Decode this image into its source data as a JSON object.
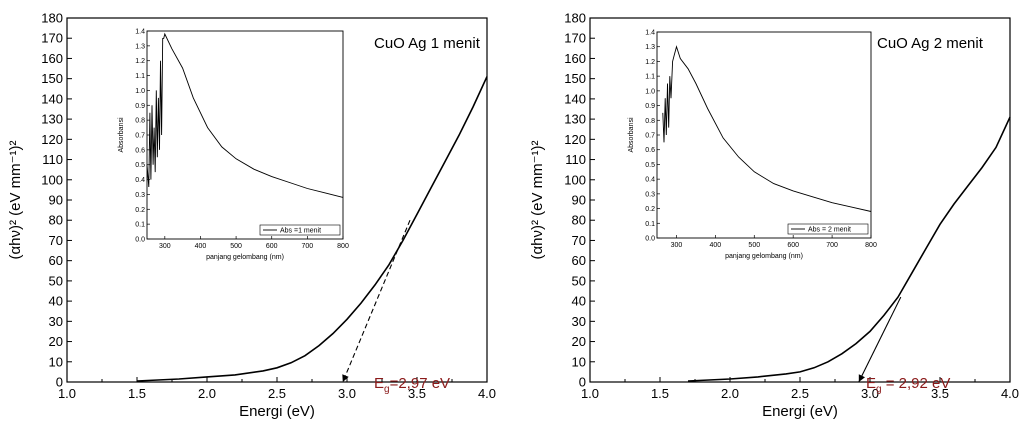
{
  "chart_data": [
    {
      "type": "line",
      "xlabel": "Energi (eV)",
      "ylabel": "(αhν)² (eV mm⁻¹)²",
      "xlim": [
        1.0,
        4.0
      ],
      "ylim": [
        0,
        180
      ],
      "xticks": [
        "1.0",
        "1.5",
        "2.0",
        "2.5",
        "3.0",
        "3.5",
        "4.0"
      ],
      "yticks": [
        "0",
        "10",
        "20",
        "30",
        "40",
        "50",
        "60",
        "70",
        "80",
        "90",
        "100",
        "110",
        "120",
        "130",
        "140",
        "150",
        "160",
        "170",
        "180"
      ],
      "sample_label": "CuO Ag 1 menit",
      "bandgap_label": {
        "base": "E",
        "sub": "g",
        "value": "=2,97 eV"
      },
      "series": [
        {
          "x": [
            1.5,
            1.8,
            2.0,
            2.2,
            2.4,
            2.5,
            2.6,
            2.7,
            2.8,
            2.9,
            3.0,
            3.1,
            3.2,
            3.3,
            3.4,
            3.5,
            3.6,
            3.7,
            3.8,
            3.9,
            4.0
          ],
          "y": [
            0.5,
            1.5,
            2.5,
            3.5,
            5.5,
            7,
            9.5,
            13,
            18,
            24,
            31,
            39,
            48,
            58,
            70,
            83,
            96,
            109,
            122,
            136,
            151
          ]
        }
      ],
      "tangent": {
        "x": [
          3.45,
          2.97
        ],
        "y": [
          80,
          0
        ],
        "style": "dashed"
      },
      "inset": {
        "xlabel": "panjang gelombang (nm)",
        "ylabel": "Absorbansi",
        "xlim": [
          250,
          800
        ],
        "ylim": [
          0,
          1.4
        ],
        "xticks": [
          "300",
          "400",
          "500",
          "600",
          "700",
          "800"
        ],
        "yticks": [
          "0.0",
          "0.1",
          "0.2",
          "0.3",
          "0.4",
          "0.5",
          "0.6",
          "0.7",
          "0.8",
          "0.9",
          "1.0",
          "1.1",
          "1.2",
          "1.3",
          "1.4"
        ],
        "legend": "Abs =1 menit",
        "series": [
          {
            "x": [
              250,
              255,
              258,
              261,
              264,
              267,
              270,
              273,
              276,
              279,
              282,
              285,
              288,
              291,
              294,
              297,
              300,
              320,
              350,
              380,
              420,
              460,
              500,
              550,
              600,
              650,
              700,
              750,
              800
            ],
            "y": [
              0.5,
              0.35,
              0.85,
              0.4,
              0.9,
              0.5,
              0.75,
              0.45,
              1.0,
              0.55,
              0.95,
              0.6,
              1.2,
              0.7,
              1.35,
              1.35,
              1.38,
              1.28,
              1.15,
              0.95,
              0.75,
              0.62,
              0.54,
              0.47,
              0.42,
              0.38,
              0.34,
              0.31,
              0.28
            ]
          }
        ]
      }
    },
    {
      "type": "line",
      "xlabel": "Energi (eV)",
      "ylabel": "(αhν)² (eV mm⁻¹)²",
      "xlim": [
        1.0,
        4.0
      ],
      "ylim": [
        0,
        180
      ],
      "xticks": [
        "1.0",
        "1.5",
        "2.0",
        "2.5",
        "3.0",
        "3.5",
        "4.0"
      ],
      "yticks": [
        "0",
        "10",
        "20",
        "30",
        "40",
        "50",
        "60",
        "70",
        "80",
        "90",
        "100",
        "110",
        "120",
        "130",
        "140",
        "150",
        "160",
        "170",
        "180"
      ],
      "sample_label": "CuO Ag 2 menit",
      "bandgap_label": {
        "base": "E",
        "sub": "g",
        "value": " = 2,92 eV"
      },
      "series": [
        {
          "x": [
            1.7,
            2.0,
            2.2,
            2.4,
            2.5,
            2.6,
            2.7,
            2.8,
            2.9,
            3.0,
            3.1,
            3.2,
            3.3,
            3.4,
            3.5,
            3.6,
            3.7,
            3.8,
            3.9,
            4.0
          ],
          "y": [
            0.5,
            1.5,
            2.5,
            4,
            5,
            7,
            10,
            14,
            19,
            25,
            33,
            42,
            54,
            66,
            78,
            88,
            97,
            106,
            116,
            131
          ]
        }
      ],
      "tangent": {
        "x": [
          3.22,
          2.92
        ],
        "y": [
          42,
          0
        ],
        "style": "solid"
      },
      "inset": {
        "xlabel": "panjang gelombang (nm)",
        "ylabel": "Absorbansi",
        "xlim": [
          250,
          800
        ],
        "ylim": [
          0,
          1.4
        ],
        "xticks": [
          "300",
          "400",
          "500",
          "600",
          "700",
          "800"
        ],
        "yticks": [
          "0.0",
          "0.1",
          "0.2",
          "0.3",
          "0.4",
          "0.5",
          "0.6",
          "0.7",
          "0.8",
          "0.9",
          "1.0",
          "1.1",
          "1.2",
          "1.3",
          "1.4"
        ],
        "legend": "Abs = 2 menit",
        "series": [
          {
            "x": [
              265,
              268,
              271,
              274,
              277,
              280,
              283,
              286,
              290,
              295,
              300,
              310,
              330,
              350,
              380,
              420,
              460,
              500,
              550,
              600,
              650,
              700,
              750,
              800
            ],
            "y": [
              0.85,
              0.65,
              0.95,
              0.7,
              1.05,
              0.75,
              1.1,
              0.95,
              1.2,
              1.25,
              1.3,
              1.22,
              1.15,
              1.05,
              0.88,
              0.68,
              0.55,
              0.45,
              0.37,
              0.32,
              0.28,
              0.24,
              0.21,
              0.18
            ]
          }
        ]
      }
    }
  ]
}
